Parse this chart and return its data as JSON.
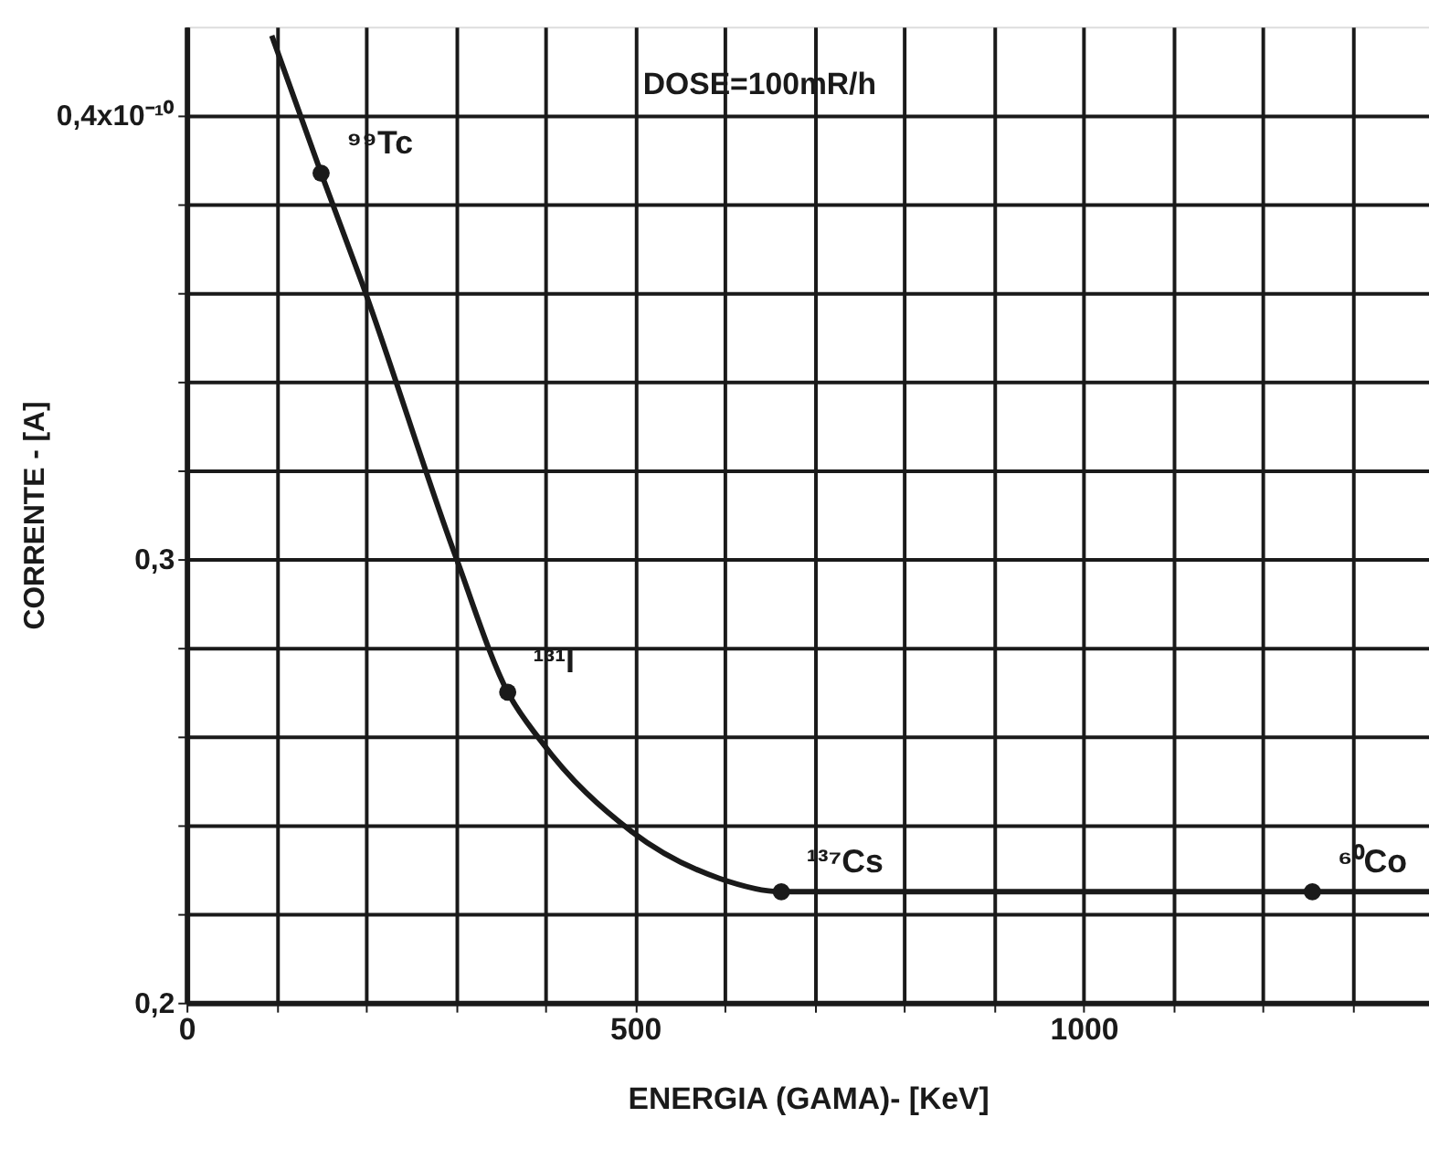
{
  "chart_data": {
    "type": "line",
    "xlabel": "ENERGIA    (GAMA)- [KeV]",
    "ylabel": "CORRENTE - [A]",
    "xlim": [
      0,
      1385
    ],
    "ylim": [
      0.2,
      0.42
    ],
    "xticks": [
      0,
      {
        "value": 100,
        "label": null
      },
      {
        "value": 200,
        "label": null
      },
      {
        "value": 300,
        "label": null
      },
      {
        "value": 400,
        "label": null
      },
      500,
      {
        "value": 600,
        "label": null
      },
      {
        "value": 700,
        "label": null
      },
      {
        "value": 800,
        "label": null
      },
      {
        "value": 900,
        "label": null
      },
      1000,
      {
        "value": 1100,
        "label": null
      },
      {
        "value": 1200,
        "label": null
      },
      {
        "value": 1300,
        "label": null
      }
    ],
    "yticks": [
      {
        "value": 0.2,
        "label": "0,2"
      },
      {
        "value": 0.22,
        "label": null
      },
      {
        "value": 0.24,
        "label": null
      },
      {
        "value": 0.26,
        "label": null
      },
      {
        "value": 0.28,
        "label": null
      },
      {
        "value": 0.3,
        "label": "0,3"
      },
      {
        "value": 0.32,
        "label": null
      },
      {
        "value": 0.34,
        "label": null
      },
      {
        "value": 0.36,
        "label": null
      },
      {
        "value": 0.38,
        "label": null
      },
      {
        "value": 0.4,
        "label": "0,4x10⁻¹⁰"
      }
    ],
    "grid": true,
    "line_style": "solid",
    "series": [
      {
        "color": "#1a1a1a",
        "x": [
          95,
          150,
          196,
          301,
          358,
          395,
          496,
          594,
          663,
          800,
          1000,
          1255,
          1385
        ],
        "values": [
          0.418,
          0.387,
          0.362,
          0.3,
          0.27,
          0.259,
          0.2386,
          0.228,
          0.225,
          0.225,
          0.225,
          0.225,
          0.225
        ]
      },
      {
        "type": "scatter",
        "color": "#1a1a1a",
        "marker": "circle",
        "x": [
          150,
          358,
          663,
          1255
        ],
        "values": [
          0.387,
          0.27,
          0.225,
          0.225
        ]
      }
    ],
    "annotations": [
      "DOSE=100mR/h",
      {
        "text": "⁹⁹Tc",
        "x": 150,
        "y": 0.387
      },
      {
        "text": "¹³¹I",
        "x": 358,
        "y": 0.27
      },
      {
        "text": "¹³⁷Cs",
        "x": 663,
        "y": 0.225
      },
      {
        "text": "⁶⁰Co",
        "x": 1255,
        "y": 0.225
      }
    ]
  }
}
